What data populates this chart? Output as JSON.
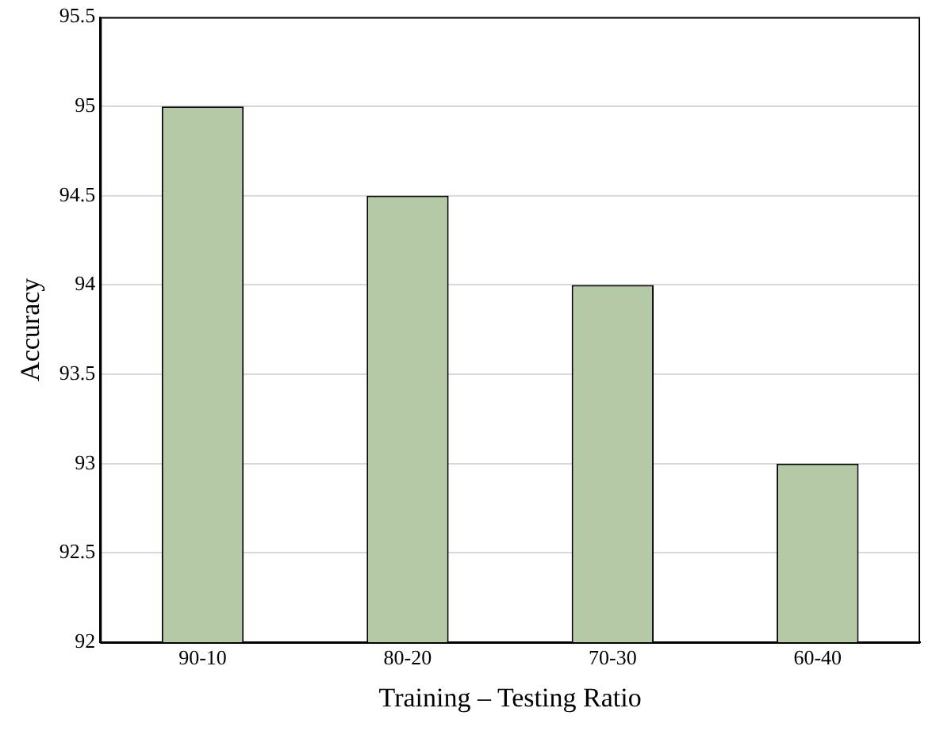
{
  "chart_data": {
    "type": "bar",
    "xlabel": "Training – Testing Ratio",
    "ylabel": "Accuracy",
    "categories": [
      "90-10",
      "80-20",
      "70-30",
      "60-40"
    ],
    "values": [
      95,
      94.5,
      94,
      93
    ],
    "color": "#b4c9a6",
    "ylim": [
      92,
      95.5
    ],
    "yticks": [
      92,
      92.5,
      93,
      93.5,
      94,
      94.5,
      95,
      95.5
    ],
    "grid": "y",
    "legend": false
  }
}
